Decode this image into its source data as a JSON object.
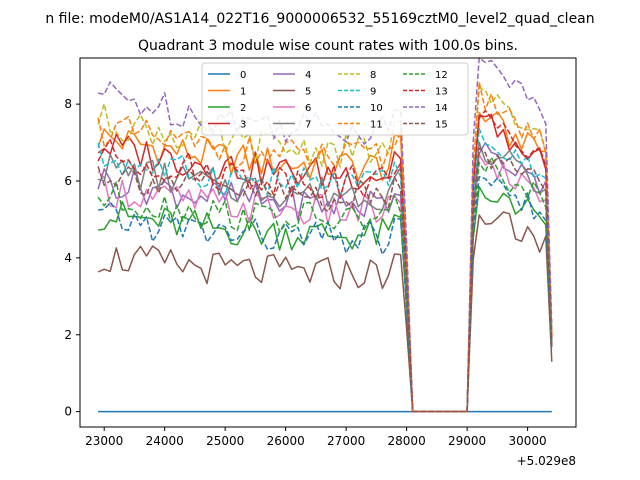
{
  "chart_data": {
    "type": "line",
    "suptitle": "n file: modeM0/AS1A14_022T16_9000006532_55169cztM0_level2_quad_clean",
    "title": "Quadrant 3 module wise count rates with 100.0s bins.",
    "xlabel": "",
    "ylabel": "",
    "x_offset_label": "+5.029e8",
    "xlim": [
      22600,
      30800
    ],
    "ylim": [
      -0.4,
      9.2
    ],
    "xticks": [
      23000,
      24000,
      25000,
      26000,
      27000,
      28000,
      29000,
      30000
    ],
    "xtick_labels": [
      "23000",
      "24000",
      "25000",
      "26000",
      "27000",
      "28000",
      "29000",
      "30000"
    ],
    "yticks": [
      0,
      2,
      4,
      6,
      8
    ],
    "ytick_labels": [
      "0",
      "2",
      "4",
      "6",
      "8"
    ],
    "grid": false,
    "legend_position": "top-center",
    "legend_columns": 4,
    "x_start": 22900,
    "x_step": 100,
    "segment1_end": 27900,
    "gap_start": 28100,
    "gap_end": 29000,
    "segment2_start": 29200,
    "segment2_end": 30400,
    "series": [
      {
        "name": "0",
        "color": "#1f77b4",
        "dash": "solid",
        "level1": 0.0,
        "level2": 0.0,
        "end_value": 0.0
      },
      {
        "name": "1",
        "color": "#ff7f0e",
        "dash": "solid",
        "level1": 6.4,
        "level2": 6.6,
        "end_value": 1.8
      },
      {
        "name": "2",
        "color": "#2ca02c",
        "dash": "solid",
        "level1": 4.6,
        "level2": 5.0,
        "end_value": 1.7
      },
      {
        "name": "3",
        "color": "#d62728",
        "dash": "solid",
        "level1": 6.2,
        "level2": 6.5,
        "end_value": 1.7
      },
      {
        "name": "4",
        "color": "#9467bd",
        "dash": "solid",
        "level1": 5.4,
        "level2": 5.8,
        "end_value": 1.7
      },
      {
        "name": "5",
        "color": "#8c564b",
        "dash": "solid",
        "level1": 3.6,
        "level2": 4.4,
        "end_value": 1.3
      },
      {
        "name": "6",
        "color": "#e377c2",
        "dash": "solid",
        "level1": 5.2,
        "level2": 5.6,
        "end_value": 1.7
      },
      {
        "name": "7",
        "color": "#7f7f7f",
        "dash": "solid",
        "level1": 5.7,
        "level2": 5.9,
        "end_value": 1.8
      },
      {
        "name": "8",
        "color": "#bcbd22",
        "dash": "dashed",
        "level1": 6.8,
        "level2": 7.0,
        "end_value": 2.0
      },
      {
        "name": "9",
        "color": "#17becf",
        "dash": "dashed",
        "level1": 5.9,
        "level2": 6.2,
        "end_value": 1.8
      },
      {
        "name": "10",
        "color": "#1f77b4",
        "dash": "dashed",
        "level1": 4.5,
        "level2": 5.2,
        "end_value": 1.6
      },
      {
        "name": "11",
        "color": "#ff7f0e",
        "dash": "dashed",
        "level1": 6.6,
        "level2": 7.0,
        "end_value": 2.0
      },
      {
        "name": "12",
        "color": "#2ca02c",
        "dash": "dashed",
        "level1": 5.0,
        "level2": 5.5,
        "end_value": 1.7
      },
      {
        "name": "13",
        "color": "#d62728",
        "dash": "dashed",
        "level1": 6.0,
        "level2": 6.5,
        "end_value": 1.9
      },
      {
        "name": "14",
        "color": "#9467bd",
        "dash": "dashed",
        "level1": 7.4,
        "level2": 7.8,
        "end_value": 2.2
      },
      {
        "name": "15",
        "color": "#8c564b",
        "dash": "dashed",
        "level1": 5.6,
        "level2": 5.8,
        "end_value": 1.7
      }
    ]
  }
}
